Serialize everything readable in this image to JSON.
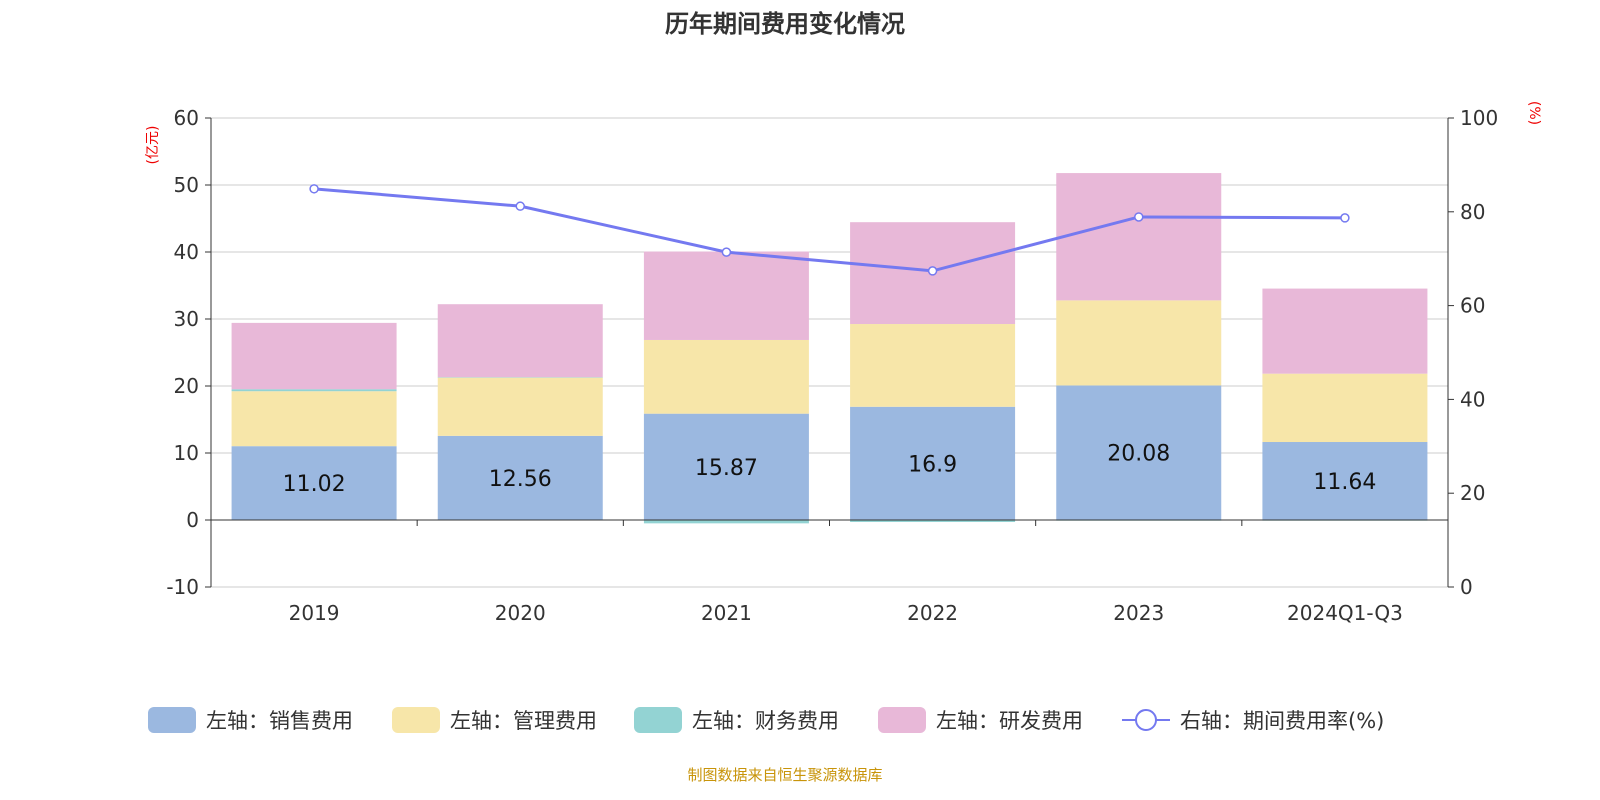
{
  "chart_data": {
    "type": "bar",
    "title": "历年期间费用变化情况",
    "left_axis": {
      "unit": "(亿元)",
      "ylim": [
        -10,
        60
      ],
      "ticks": [
        -10,
        0,
        10,
        20,
        30,
        40,
        50,
        60
      ]
    },
    "right_axis": {
      "unit": "(%)",
      "ylim": [
        0,
        100
      ],
      "ticks": [
        0,
        20,
        40,
        60,
        80,
        100
      ]
    },
    "grid": true,
    "legend_position": "bottom",
    "categories": [
      "2019",
      "2020",
      "2021",
      "2022",
      "2023",
      "2024Q1-Q3"
    ],
    "series": [
      {
        "name": "左轴：销售费用",
        "type": "bar",
        "axis": "left",
        "color": "#9bb8e0",
        "values": [
          11.02,
          12.56,
          15.87,
          16.9,
          20.08,
          11.64
        ],
        "labels": [
          "11.02",
          "12.56",
          "15.87",
          "16.9",
          "20.08",
          "11.64"
        ]
      },
      {
        "name": "左轴：管理费用",
        "type": "bar",
        "axis": "left",
        "color": "#f7e6a9",
        "values": [
          8.2,
          8.7,
          11.0,
          12.35,
          12.7,
          10.2
        ]
      },
      {
        "name": "左轴：财务费用",
        "type": "bar",
        "axis": "left",
        "color": "#93d3d3",
        "values": [
          0.3,
          0.05,
          -0.5,
          -0.3,
          -0.1,
          -0.1
        ]
      },
      {
        "name": "左轴：研发费用",
        "type": "bar",
        "axis": "left",
        "color": "#e8b8d8",
        "values": [
          9.9,
          10.9,
          13.2,
          15.2,
          19.0,
          12.7
        ]
      },
      {
        "name": "右轴：期间费用率(%)",
        "type": "line",
        "axis": "right",
        "color": "#7479f0",
        "values": [
          84.9,
          81.2,
          71.4,
          67.4,
          78.9,
          78.7
        ]
      }
    ]
  },
  "footer": {
    "source": "制图数据来自恒生聚源数据库"
  }
}
